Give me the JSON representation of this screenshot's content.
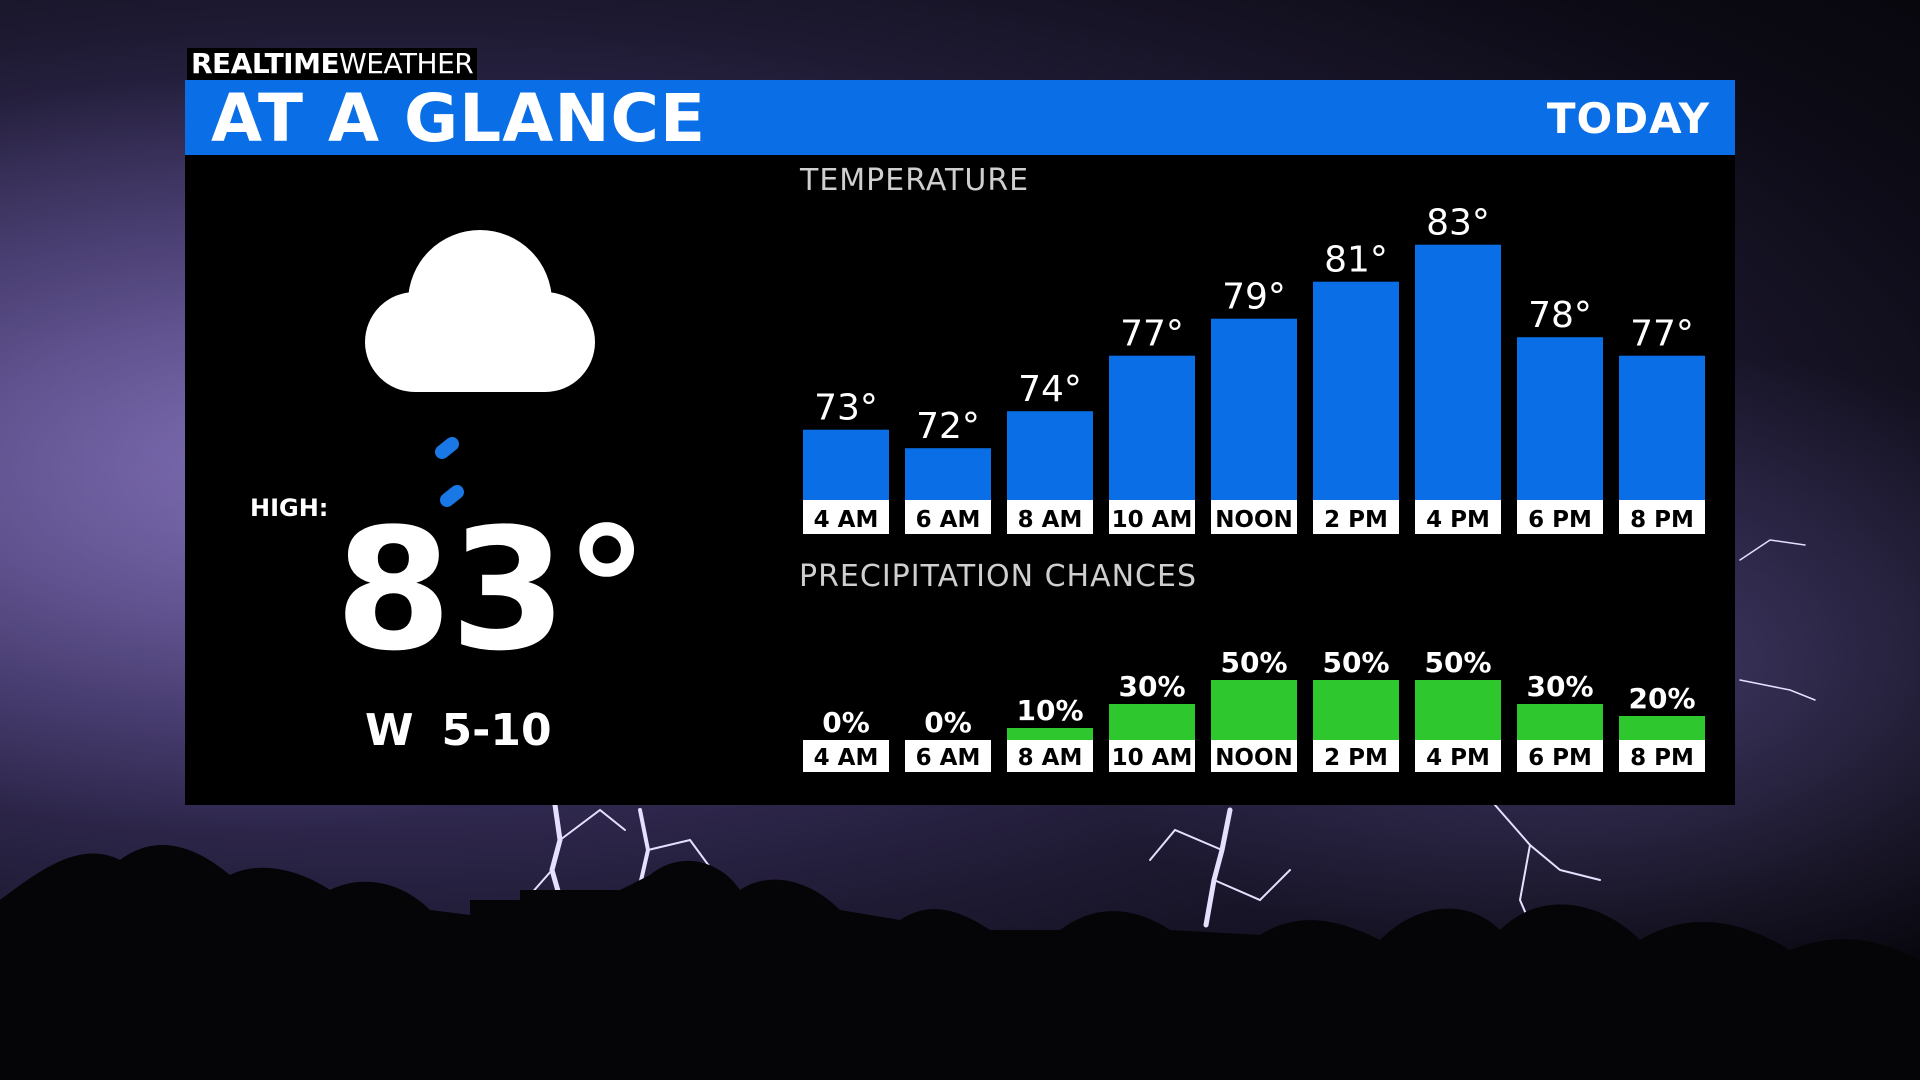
{
  "brand": {
    "bold": "REALTIME",
    "light": "WEATHER"
  },
  "header": {
    "title": "AT A GLANCE",
    "period": "TODAY"
  },
  "current": {
    "icon": "cloud-rain-icon",
    "high_label": "HIGH:",
    "high_value": "83°",
    "wind_direction": "W",
    "wind_speed": "5-10"
  },
  "colors": {
    "header_blue": "#0a6ee6",
    "temp_bar": "#0a6ee6",
    "precip_bar": "#2ec82e",
    "rain_drop": "#1a78e6"
  },
  "chart_data": [
    {
      "type": "bar",
      "title": "TEMPERATURE",
      "categories": [
        "4 AM",
        "6 AM",
        "8 AM",
        "10 AM",
        "NOON",
        "2 PM",
        "4 PM",
        "6 PM",
        "8 PM"
      ],
      "values": [
        73,
        72,
        74,
        77,
        79,
        81,
        83,
        78,
        77
      ],
      "data_labels": [
        "73°",
        "72°",
        "74°",
        "77°",
        "79°",
        "81°",
        "83°",
        "78°",
        "77°"
      ],
      "unit": "°"
    },
    {
      "type": "bar",
      "title": "PRECIPITATION CHANCES",
      "categories": [
        "4 AM",
        "6 AM",
        "8 AM",
        "10 AM",
        "NOON",
        "2 PM",
        "4 PM",
        "6 PM",
        "8 PM"
      ],
      "values": [
        0,
        0,
        10,
        30,
        50,
        50,
        50,
        30,
        20
      ],
      "data_labels": [
        "0%",
        "0%",
        "10%",
        "30%",
        "50%",
        "50%",
        "50%",
        "30%",
        "20%"
      ],
      "unit": "%"
    }
  ]
}
